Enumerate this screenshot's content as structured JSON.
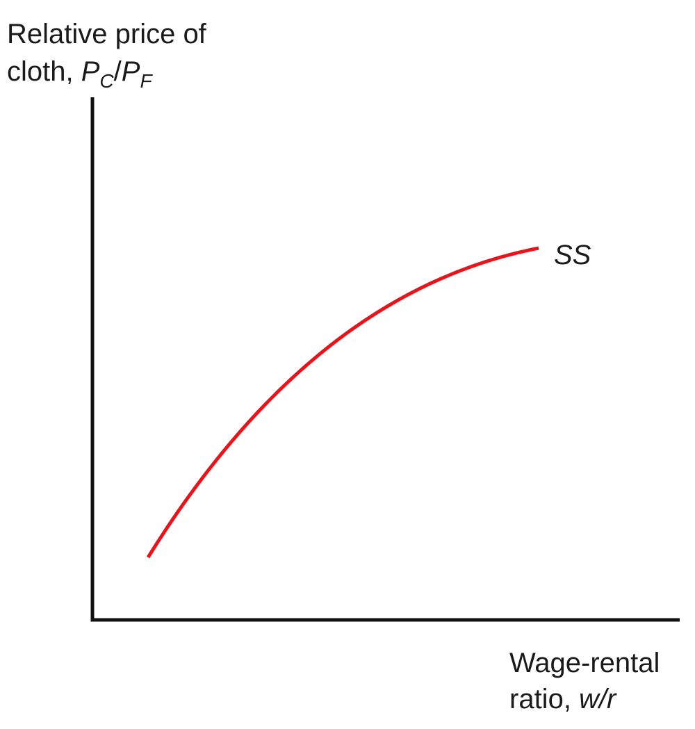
{
  "y_axis_label": {
    "line1": "Relative price of",
    "line2_prefix": "cloth, ",
    "var1": "P",
    "sub1": "C",
    "separator": "/",
    "var2": "P",
    "sub2": "F"
  },
  "x_axis_label": {
    "line1": "Wage-rental",
    "line2_prefix": "ratio, ",
    "var": "w/r"
  },
  "curve": {
    "name": "SS",
    "color": "#e8141c"
  },
  "axis_color": "#111111"
}
